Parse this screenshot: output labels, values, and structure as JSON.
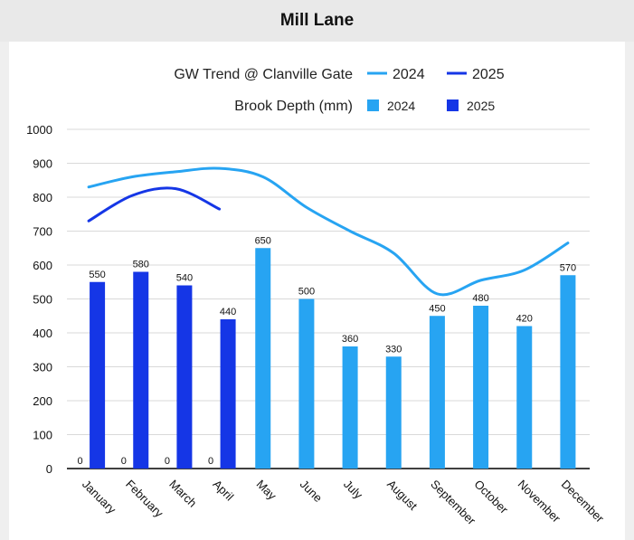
{
  "header": {
    "title": "Mill Lane"
  },
  "colors": {
    "light_blue": "#27a4f2",
    "dark_blue": "#1536e6",
    "grid": "#d9d9d9",
    "axis": "#000000"
  },
  "chart_data": {
    "type": "bar",
    "categories": [
      "January",
      "February",
      "March",
      "April",
      "May",
      "June",
      "July",
      "August",
      "September",
      "October",
      "November",
      "December"
    ],
    "ylim": [
      0,
      1000
    ],
    "yticks": [
      "0",
      "100",
      "200",
      "300",
      "400",
      "500",
      "600",
      "700",
      "800",
      "900",
      "1000"
    ],
    "grid": true,
    "legend": {
      "placement": "top",
      "line_title": "GW Trend @ Clanville Gate",
      "bar_title": "Brook Depth (mm)"
    },
    "bar_series": [
      {
        "name": "2024",
        "color": "#27a4f2",
        "values": [
          0,
          0,
          0,
          0,
          650,
          500,
          360,
          330,
          450,
          480,
          420,
          570
        ]
      },
      {
        "name": "2025",
        "color": "#1536e6",
        "values": [
          550,
          580,
          540,
          440,
          null,
          null,
          null,
          null,
          null,
          null,
          null,
          null
        ]
      }
    ],
    "bar_labels": [
      {
        "category": "January",
        "series": "2024",
        "text": "0"
      },
      {
        "category": "January",
        "series": "2025",
        "text": "550"
      },
      {
        "category": "February",
        "series": "2024",
        "text": "0"
      },
      {
        "category": "February",
        "series": "2025",
        "text": "580"
      },
      {
        "category": "March",
        "series": "2024",
        "text": "0"
      },
      {
        "category": "March",
        "series": "2025",
        "text": "540"
      },
      {
        "category": "April",
        "series": "2024",
        "text": "0"
      },
      {
        "category": "April",
        "series": "2025",
        "text": "440"
      },
      {
        "category": "May",
        "series": "2024",
        "text": "650"
      },
      {
        "category": "June",
        "series": "2024",
        "text": "500"
      },
      {
        "category": "July",
        "series": "2024",
        "text": "360"
      },
      {
        "category": "August",
        "series": "2024",
        "text": "330"
      },
      {
        "category": "September",
        "series": "2024",
        "text": "450"
      },
      {
        "category": "October",
        "series": "2024",
        "text": "480"
      },
      {
        "category": "November",
        "series": "2024",
        "text": "420"
      },
      {
        "category": "December",
        "series": "2024",
        "text": "570"
      }
    ],
    "line_series": [
      {
        "name": "2024",
        "color": "#27a4f2",
        "values": [
          830,
          860,
          875,
          885,
          860,
          770,
          700,
          635,
          515,
          555,
          585,
          665
        ]
      },
      {
        "name": "2025",
        "color": "#1536e6",
        "values": [
          730,
          805,
          825,
          765,
          null,
          null,
          null,
          null,
          null,
          null,
          null,
          null
        ]
      }
    ]
  }
}
